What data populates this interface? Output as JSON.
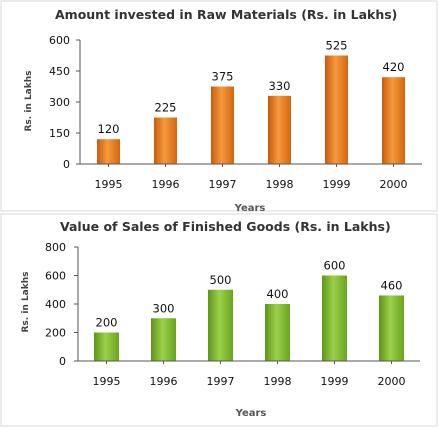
{
  "chart_data": [
    {
      "type": "bar",
      "title": "Amount invested in Raw Materials (Rs. in Lakhs)",
      "xlabel": "Years",
      "ylabel": "Rs. in Lakhs",
      "categories": [
        "1995",
        "1996",
        "1997",
        "1998",
        "1999",
        "2000"
      ],
      "values": [
        120,
        225,
        375,
        330,
        525,
        420
      ],
      "ylim": [
        0,
        600
      ],
      "yticks": [
        0,
        150,
        300,
        450,
        600
      ],
      "bar_color": "#e8761c",
      "grid": false
    },
    {
      "type": "bar",
      "title": "Value of Sales of Finished Goods (Rs. in Lakhs)",
      "xlabel": "Years",
      "ylabel": "Rs. in Lakhs",
      "categories": [
        "1995",
        "1996",
        "1997",
        "1998",
        "1999",
        "2000"
      ],
      "values": [
        200,
        300,
        500,
        400,
        600,
        460
      ],
      "ylim": [
        0,
        800
      ],
      "yticks": [
        0,
        200,
        400,
        600,
        800
      ],
      "bar_color": "#7cb22c",
      "grid": false
    }
  ]
}
